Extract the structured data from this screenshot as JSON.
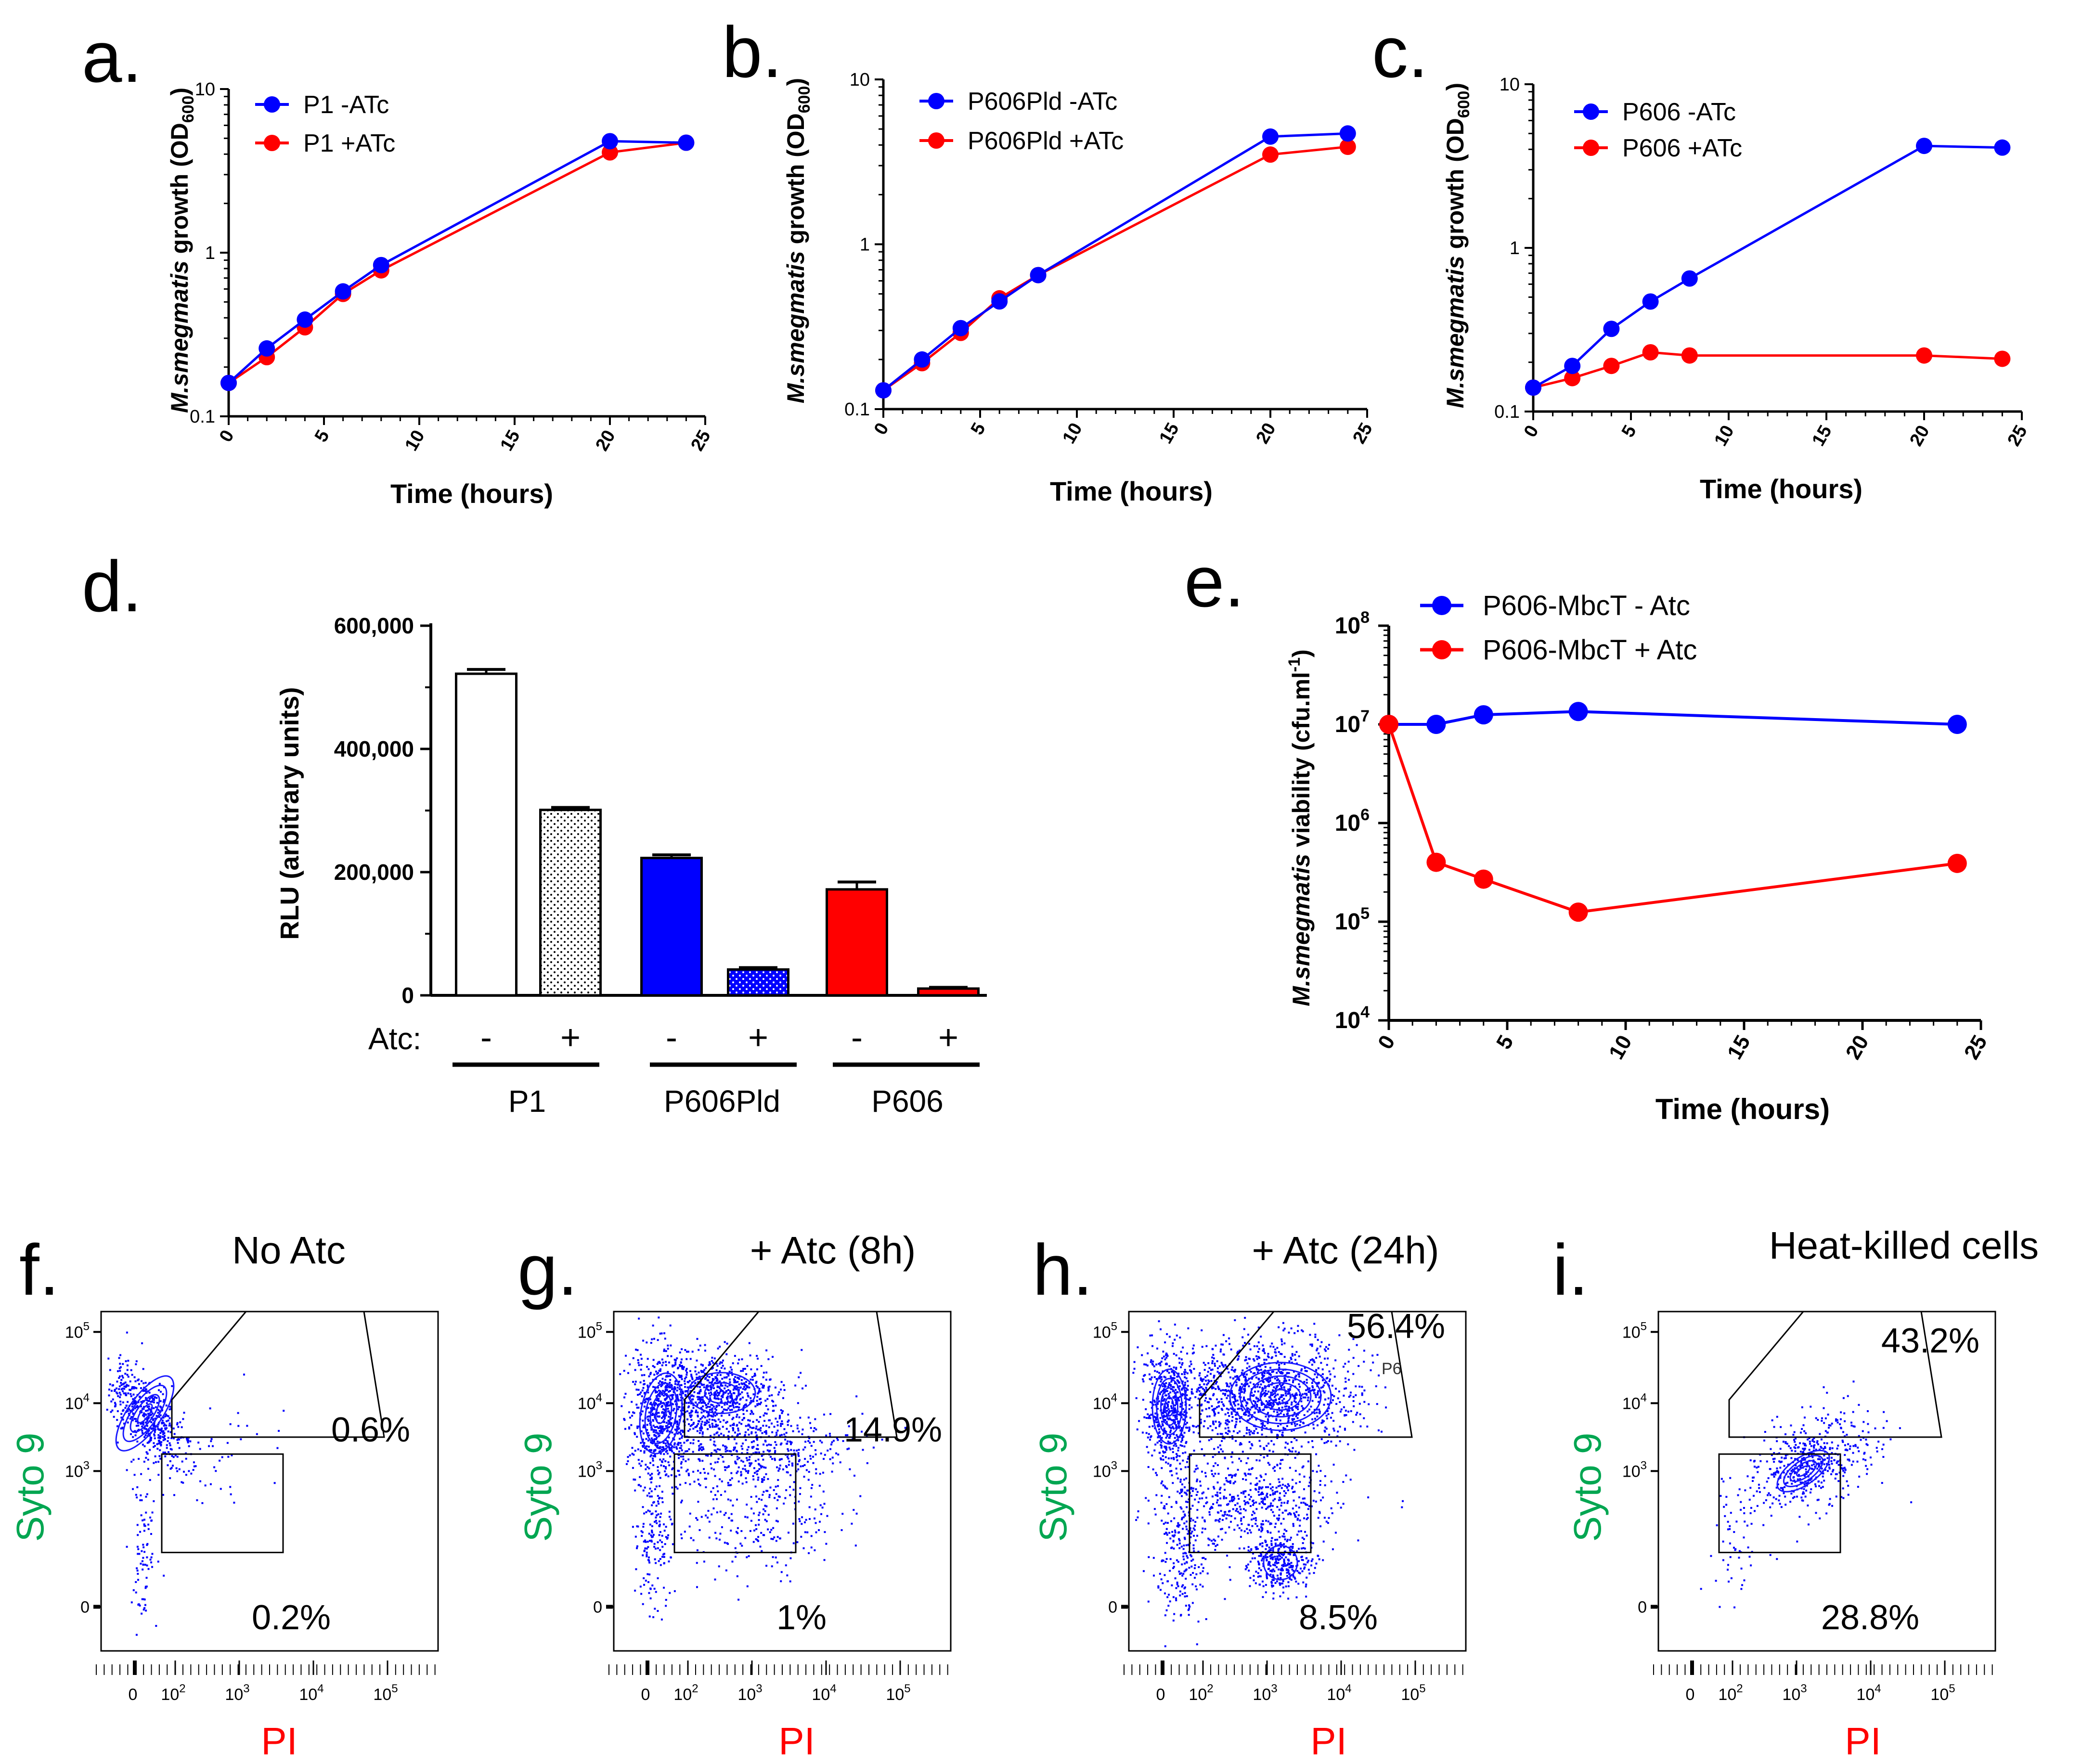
{
  "colors": {
    "blue": "#0000ff",
    "red": "#ff0000",
    "green": "#00a651",
    "black": "#000000"
  },
  "growth_panels": [
    {
      "letter": "a.",
      "ylabel_species": "M.smegmatis",
      "ylabel_rest": " growth (OD",
      "ylabel_sub": "600",
      "ylabel_close": ")",
      "xlabel": "Time (hours)",
      "legend": [
        "P1 -ATc",
        "P1 +ATc"
      ]
    },
    {
      "letter": "b.",
      "ylabel_species": "M.smegmatis",
      "ylabel_rest": " growth (OD",
      "ylabel_sub": "600",
      "ylabel_close": ")",
      "xlabel": "Time (hours)",
      "legend": [
        "P606Pld -ATc",
        "P606Pld +ATc"
      ]
    },
    {
      "letter": "c.",
      "ylabel_species": "M.smegmatis",
      "ylabel_rest": " growth (OD",
      "ylabel_sub": "600",
      "ylabel_close": ")",
      "xlabel": "Time (hours)",
      "legend": [
        "P606 -ATc",
        "P606 +ATc"
      ]
    }
  ],
  "bar_panel": {
    "letter": "d.",
    "ylabel": "RLU (arbitrary units)",
    "atc_label": "Atc:",
    "signs": [
      "-",
      "+",
      "-",
      "+",
      "-",
      "+"
    ],
    "groups": [
      "P1",
      "P606Pld",
      "P606"
    ]
  },
  "viability_panel": {
    "letter": "e.",
    "ylabel_species": "M.smegmatis",
    "ylabel_rest": "  viability (cfu.ml",
    "ylabel_sup": "-1",
    "ylabel_close": ")",
    "xlabel": "Time (hours)",
    "legend": [
      "P606-MbcT - Atc",
      "P606-MbcT + Atc"
    ]
  },
  "flow_panels": [
    {
      "letter": "f.",
      "title": "No Atc",
      "upper_pct": "0.6%",
      "lower_pct": "0.2%",
      "ylabel": "Syto 9",
      "xlabel": "PI",
      "gate_label": ""
    },
    {
      "letter": "g.",
      "title": "+ Atc (8h)",
      "upper_pct": "14.9%",
      "lower_pct": "1%",
      "ylabel": "Syto 9",
      "xlabel": "PI",
      "gate_label": ""
    },
    {
      "letter": "h.",
      "title": "+ Atc (24h)",
      "upper_pct": "56.4%",
      "lower_pct": "8.5%",
      "ylabel": "Syto 9",
      "xlabel": "PI",
      "gate_label": "P6"
    },
    {
      "letter": "i.",
      "title": "Heat-killed cells",
      "upper_pct": "43.2%",
      "lower_pct": "28.8%",
      "ylabel": "Syto 9",
      "xlabel": "PI",
      "gate_label": ""
    }
  ],
  "chart_data": [
    {
      "type": "line",
      "panel": "a",
      "yscale": "log",
      "ylim": [
        0.1,
        10
      ],
      "xlim": [
        0,
        25
      ],
      "yticks": [
        0.1,
        1,
        10
      ],
      "yticklabels": [
        "0.1",
        "1",
        "10"
      ],
      "xticks": [
        0,
        5,
        10,
        15,
        20,
        25
      ],
      "xticklabels": [
        "0",
        "5",
        "10",
        "15",
        "20",
        "25"
      ],
      "xlabel": "Time (hours)",
      "series": [
        {
          "name": "P1 -ATc",
          "color": "#0000ff",
          "x": [
            0,
            2,
            4,
            6,
            8,
            20,
            24
          ],
          "y": [
            0.16,
            0.26,
            0.39,
            0.58,
            0.84,
            4.8,
            4.7
          ]
        },
        {
          "name": "P1 +ATc",
          "color": "#ff0000",
          "x": [
            0,
            2,
            4,
            6,
            8,
            20,
            24
          ],
          "y": [
            0.16,
            0.23,
            0.35,
            0.56,
            0.78,
            4.1,
            4.7
          ]
        }
      ]
    },
    {
      "type": "line",
      "panel": "b",
      "yscale": "log",
      "ylim": [
        0.1,
        10
      ],
      "xlim": [
        0,
        25
      ],
      "yticks": [
        0.1,
        1,
        10
      ],
      "yticklabels": [
        "0.1",
        "1",
        "10"
      ],
      "xticks": [
        0,
        5,
        10,
        15,
        20,
        25
      ],
      "xticklabels": [
        "0",
        "5",
        "10",
        "15",
        "20",
        "25"
      ],
      "xlabel": "Time (hours)",
      "series": [
        {
          "name": "P606Pld -ATc",
          "color": "#0000ff",
          "x": [
            0,
            2,
            4,
            6,
            8,
            20,
            24
          ],
          "y": [
            0.13,
            0.2,
            0.31,
            0.45,
            0.65,
            4.5,
            4.7
          ]
        },
        {
          "name": "P606Pld +ATc",
          "color": "#ff0000",
          "x": [
            0,
            2,
            4,
            6,
            8,
            20,
            24
          ],
          "y": [
            0.13,
            0.19,
            0.29,
            0.47,
            0.65,
            3.5,
            3.9
          ]
        }
      ]
    },
    {
      "type": "line",
      "panel": "c",
      "yscale": "log",
      "ylim": [
        0.1,
        10
      ],
      "xlim": [
        0,
        25
      ],
      "yticks": [
        0.1,
        1,
        10
      ],
      "yticklabels": [
        "0.1",
        "1",
        "10"
      ],
      "xticks": [
        0,
        5,
        10,
        15,
        20,
        25
      ],
      "xticklabels": [
        "0",
        "5",
        "10",
        "15",
        "20",
        "25"
      ],
      "xlabel": "Time (hours)",
      "series": [
        {
          "name": "P606 -ATc",
          "color": "#0000ff",
          "x": [
            0,
            2,
            4,
            6,
            8,
            20,
            24
          ],
          "y": [
            0.14,
            0.19,
            0.32,
            0.47,
            0.65,
            4.2,
            4.1
          ]
        },
        {
          "name": "P606 +ATc",
          "color": "#ff0000",
          "x": [
            0,
            2,
            4,
            6,
            8,
            20,
            24
          ],
          "y": [
            0.14,
            0.16,
            0.19,
            0.23,
            0.22,
            0.22,
            0.21
          ]
        }
      ]
    },
    {
      "type": "bar",
      "panel": "d",
      "ylabel": "RLU (arbitrary units)",
      "ylim": [
        0,
        600000
      ],
      "yticks": [
        0,
        200000,
        400000,
        600000
      ],
      "yticklabels": [
        "0",
        "200,000",
        "400,000",
        "600,000"
      ],
      "categories": [
        "P1 -",
        "P1 +",
        "P606Pld -",
        "P606Pld +",
        "P606 -",
        "P606 +"
      ],
      "values": [
        522000,
        301000,
        223000,
        42000,
        172000,
        11000
      ],
      "errors": [
        7000,
        4000,
        5000,
        3000,
        12000,
        2000
      ],
      "fills": [
        "white",
        "dotted-white",
        "#0000ff",
        "dotted-blue",
        "#ff0000",
        "#ff0000"
      ]
    },
    {
      "type": "line",
      "panel": "e",
      "yscale": "log",
      "ylim": [
        10000,
        100000000
      ],
      "xlim": [
        0,
        25
      ],
      "yticks": [
        10000,
        100000,
        1000000,
        10000000,
        100000000
      ],
      "ytick_exponents": [
        "4",
        "5",
        "6",
        "7",
        "8"
      ],
      "ytick_base": "10",
      "xticks": [
        0,
        5,
        10,
        15,
        20,
        25
      ],
      "xticklabels": [
        "0",
        "5",
        "10",
        "15",
        "20",
        "25"
      ],
      "xlabel": "Time (hours)",
      "series": [
        {
          "name": "P606-MbcT - Atc",
          "color": "#0000ff",
          "x": [
            0,
            2,
            4,
            8,
            24
          ],
          "y": [
            10000000,
            10000000,
            12500000,
            13500000,
            10000000
          ]
        },
        {
          "name": "P606-MbcT + Atc",
          "color": "#ff0000",
          "x": [
            0,
            2,
            4,
            8,
            24
          ],
          "y": [
            10000000,
            400000,
            270000,
            125000,
            390000
          ]
        }
      ]
    },
    {
      "type": "scatter",
      "panel": "flow",
      "x_ticklabels": [
        "0",
        "10",
        "10",
        "10",
        "10"
      ],
      "x_tick_exponents": [
        "",
        "2",
        "3",
        "4",
        "5"
      ],
      "y_ticklabels": [
        "0",
        "10",
        "10",
        "10"
      ],
      "y_tick_exponents": [
        "",
        "3",
        "4",
        "5"
      ],
      "upper_gate_percent": [
        0.6,
        14.9,
        56.4,
        43.2
      ],
      "lower_gate_percent": [
        0.2,
        1,
        8.5,
        28.8
      ]
    }
  ]
}
